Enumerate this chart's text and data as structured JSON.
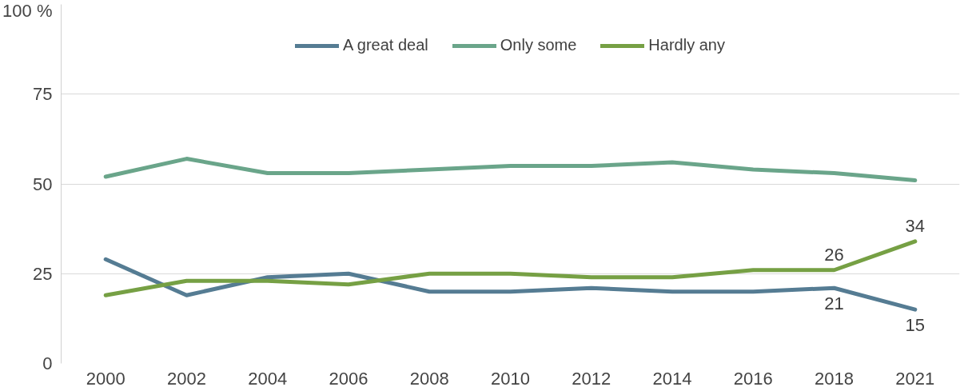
{
  "chart_data": {
    "type": "line",
    "categories": [
      "2000",
      "2002",
      "2004",
      "2006",
      "2008",
      "2010",
      "2012",
      "2014",
      "2016",
      "2018",
      "2021"
    ],
    "series": [
      {
        "name": "A great deal",
        "color": "#557c93",
        "values": [
          29,
          19,
          24,
          25,
          20,
          20,
          21,
          20,
          20,
          21,
          15
        ],
        "value_labels": [
          null,
          null,
          null,
          null,
          null,
          null,
          null,
          null,
          null,
          "21",
          "15"
        ]
      },
      {
        "name": "Only some",
        "color": "#6aa58a",
        "values": [
          52,
          57,
          53,
          53,
          54,
          55,
          55,
          56,
          54,
          53,
          51
        ]
      },
      {
        "name": "Hardly any",
        "color": "#76a044",
        "values": [
          19,
          23,
          23,
          22,
          25,
          25,
          24,
          24,
          26,
          26,
          34
        ],
        "value_labels": [
          null,
          null,
          null,
          null,
          null,
          null,
          null,
          null,
          null,
          "26",
          "34"
        ]
      }
    ],
    "ylim": [
      0,
      100
    ],
    "yticks": [
      0,
      25,
      50,
      75,
      {
        "value": 100,
        "label": "100 %"
      }
    ],
    "grid": "y",
    "legend": "top",
    "marker": "none",
    "line_style": "solid"
  }
}
